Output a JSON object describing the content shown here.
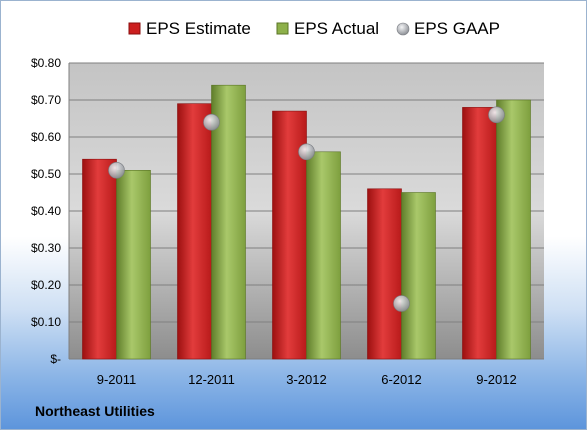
{
  "chart_data": {
    "type": "bar",
    "categories": [
      "9-2011",
      "12-2011",
      "3-2012",
      "6-2012",
      "9-2012"
    ],
    "series": [
      {
        "name": "EPS Estimate",
        "kind": "bar",
        "values": [
          0.54,
          0.69,
          0.67,
          0.46,
          0.68
        ]
      },
      {
        "name": "EPS Actual",
        "kind": "bar",
        "values": [
          0.51,
          0.74,
          0.56,
          0.45,
          0.7
        ]
      },
      {
        "name": "EPS GAAP",
        "kind": "marker",
        "values": [
          0.51,
          0.64,
          0.56,
          0.15,
          0.66
        ]
      }
    ],
    "ylim": [
      0,
      0.8
    ],
    "yticks": [
      0,
      0.1,
      0.2,
      0.3,
      0.4,
      0.5,
      0.6,
      0.7,
      0.8
    ],
    "ytick_labels": [
      "$-",
      "$0.10",
      "$0.20",
      "$0.30",
      "$0.40",
      "$0.50",
      "$0.60",
      "$0.70",
      "$0.80"
    ],
    "grid": true,
    "legend": "top",
    "colors": {
      "estimate": "#cc1f1f",
      "actual": "#8db04a",
      "gaap": "#b9bcc2"
    }
  },
  "footer": {
    "company": "Northeast Utilities"
  }
}
